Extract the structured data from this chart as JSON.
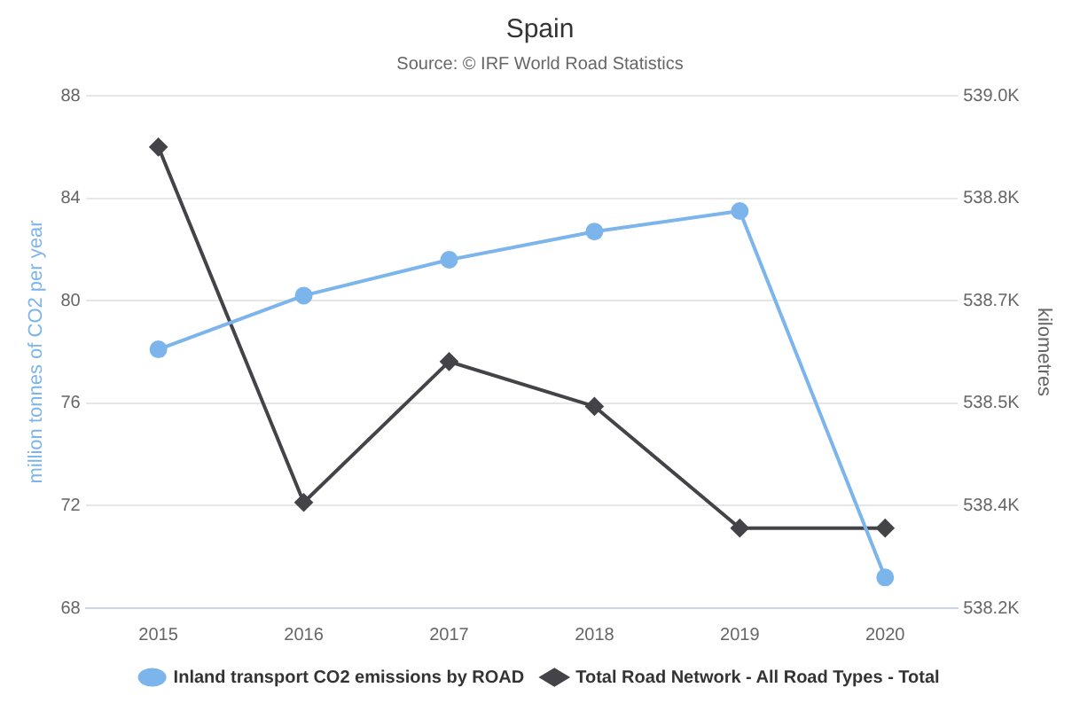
{
  "chart_data": {
    "type": "line",
    "title": "Spain",
    "subtitle": "Source: © IRF World Road Statistics",
    "categories": [
      "2015",
      "2016",
      "2017",
      "2018",
      "2019",
      "2020"
    ],
    "series": [
      {
        "name": "Inland transport CO2 emissions by ROAD",
        "color": "#7cb5ec",
        "marker": "circle",
        "values": [
          78.1,
          80.2,
          81.6,
          82.7,
          83.5,
          69.2
        ]
      },
      {
        "name": "Total Road Network - All Road Types - Total",
        "color": "#434348",
        "marker": "diamond",
        "axis": "y2",
        "values": [
          538920,
          538365,
          538585,
          538515,
          538325,
          538325
        ]
      }
    ],
    "ylabel": "million tonnes of CO2 per year",
    "y2label": "kilometres",
    "ylim": [
      68,
      88
    ],
    "yticks": [
      68,
      72,
      76,
      80,
      84,
      88
    ],
    "y2lim": [
      538200,
      539000
    ],
    "y2ticks": [
      {
        "value": 538200,
        "label": "538.2K"
      },
      {
        "value": 538360,
        "label": "538.4K"
      },
      {
        "value": 538520,
        "label": "538.5K"
      },
      {
        "value": 538680,
        "label": "538.7K"
      },
      {
        "value": 538840,
        "label": "538.8K"
      },
      {
        "value": 539000,
        "label": "539.0K"
      }
    ],
    "grid": "y",
    "legend": "bottom"
  }
}
